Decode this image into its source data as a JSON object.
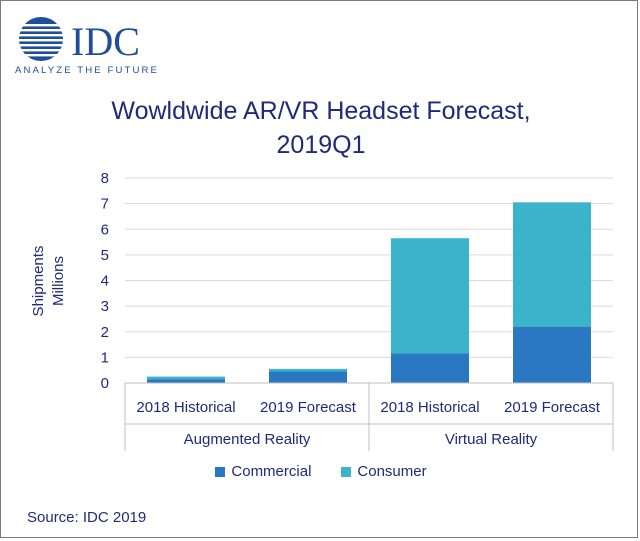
{
  "brand": {
    "name": "IDC",
    "tagline": "ANALYZE THE FUTURE",
    "color": "#1f4e9c"
  },
  "title": {
    "line1": "Wowldwide AR/VR Headset Forecast,",
    "line2": "2019Q1"
  },
  "source": "Source: IDC 2019",
  "colors": {
    "commercial": "#2a78c2",
    "consumer": "#3bb3cb",
    "text": "#1f2a7a",
    "grid": "#d9d9d9"
  },
  "chart_data": {
    "type": "bar",
    "stacked": true,
    "ylabel": "Shipments Millions",
    "ylabel_lines": [
      "Shipments",
      "Millions"
    ],
    "ylim": [
      0,
      8
    ],
    "yticks": [
      0,
      1,
      2,
      3,
      4,
      5,
      6,
      7,
      8
    ],
    "grid": true,
    "legend_position": "bottom",
    "categories": [
      "2018 Historical",
      "2019 Forecast",
      "2018 Historical",
      "2019 Forecast"
    ],
    "groups": [
      {
        "label": "Augmented Reality",
        "span": [
          0,
          1
        ]
      },
      {
        "label": "Virtual Reality",
        "span": [
          2,
          3
        ]
      }
    ],
    "series": [
      {
        "name": "Commercial",
        "values": [
          0.15,
          0.45,
          1.15,
          2.2
        ]
      },
      {
        "name": "Consumer",
        "values": [
          0.1,
          0.1,
          4.5,
          4.85
        ]
      }
    ]
  }
}
